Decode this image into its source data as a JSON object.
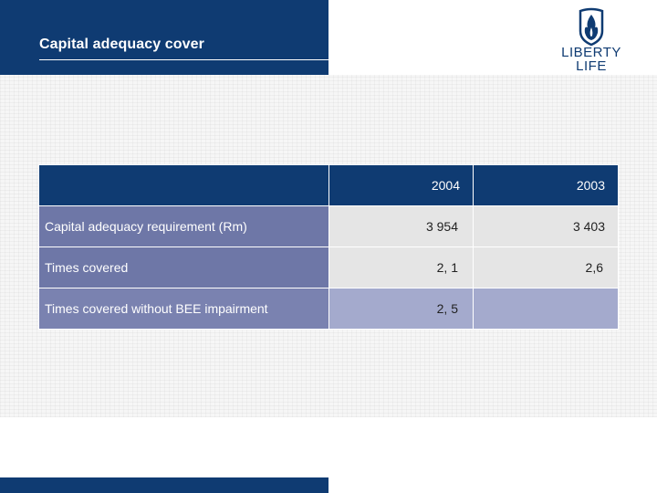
{
  "header": {
    "title": "Capital adequacy cover"
  },
  "logo": {
    "line1": "LIBERTY",
    "line2": "LIFE"
  },
  "colors": {
    "primary": "#0f3b72",
    "label_cell": "#6e77a7",
    "value_cell": "#e5e5e5",
    "highlight_cell": "#a4aacd"
  },
  "table": {
    "columns": [
      "2004",
      "2003"
    ],
    "rows": [
      {
        "label": "Capital adequacy requirement (Rm)",
        "v2004": "3 954",
        "v2003": "3 403"
      },
      {
        "label": "Times covered",
        "v2004": "2, 1",
        "v2003": "2,6"
      },
      {
        "label": "Times covered without BEE impairment",
        "v2004": "2, 5",
        "v2003": ""
      }
    ]
  }
}
